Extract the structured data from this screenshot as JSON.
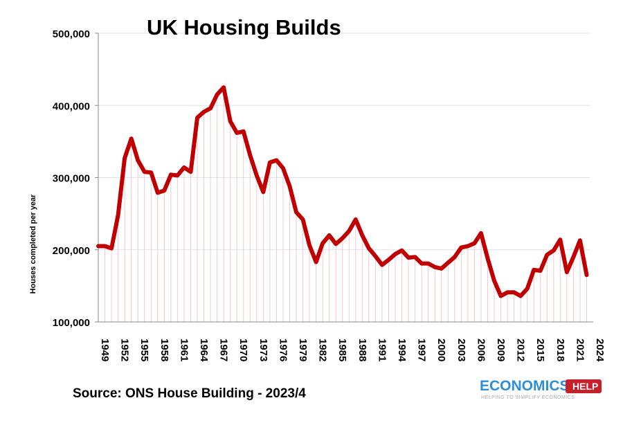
{
  "chart_data": {
    "type": "line",
    "title": "UK Housing Builds",
    "xlabel": "",
    "ylabel": "Houses completed per year",
    "ylim": [
      100000,
      500000
    ],
    "yticks": [
      "100,000",
      "200,000",
      "300,000",
      "400,000",
      "500,000"
    ],
    "ytick_values": [
      100000,
      200000,
      300000,
      400000,
      500000
    ],
    "xlim": [
      1949,
      2024
    ],
    "xticks": [
      "1949",
      "1952",
      "1955",
      "1958",
      "1961",
      "1964",
      "1967",
      "1970",
      "1973",
      "1976",
      "1979",
      "1982",
      "1985",
      "1988",
      "1991",
      "1994",
      "1997",
      "2000",
      "2003",
      "2006",
      "2009",
      "2012",
      "2015",
      "2018",
      "2021",
      "2024"
    ],
    "grid": true,
    "line_color": "#c00000",
    "x": [
      1949,
      1950,
      1951,
      1952,
      1953,
      1954,
      1955,
      1956,
      1957,
      1958,
      1959,
      1960,
      1961,
      1962,
      1963,
      1964,
      1965,
      1966,
      1967,
      1968,
      1969,
      1970,
      1971,
      1972,
      1973,
      1974,
      1975,
      1976,
      1977,
      1978,
      1979,
      1980,
      1981,
      1982,
      1983,
      1984,
      1985,
      1986,
      1987,
      1988,
      1989,
      1990,
      1991,
      1992,
      1993,
      1994,
      1995,
      1996,
      1997,
      1998,
      1999,
      2000,
      2001,
      2002,
      2003,
      2004,
      2005,
      2006,
      2007,
      2008,
      2009,
      2010,
      2011,
      2012,
      2013,
      2014,
      2015,
      2016,
      2017,
      2018,
      2019,
      2020,
      2021,
      2022,
      2023
    ],
    "values": [
      205000,
      205000,
      202000,
      248000,
      327000,
      354000,
      324000,
      308000,
      307000,
      279000,
      282000,
      304000,
      303000,
      314000,
      308000,
      383000,
      391000,
      396000,
      415000,
      425000,
      378000,
      362000,
      364000,
      331000,
      303000,
      280000,
      321000,
      324000,
      313000,
      288000,
      252000,
      242000,
      206000,
      183000,
      209000,
      220000,
      208000,
      216000,
      226000,
      242000,
      220000,
      202000,
      191000,
      179000,
      186000,
      194000,
      199000,
      189000,
      190000,
      181000,
      181000,
      176000,
      174000,
      182000,
      190000,
      203000,
      205000,
      209000,
      223000,
      188000,
      157000,
      136000,
      141000,
      141000,
      136000,
      146000,
      172000,
      171000,
      193000,
      199000,
      214000,
      169000,
      190000,
      213000,
      165000
    ]
  },
  "source": "Source: ONS House Building - 2023/4",
  "logo": {
    "word": "ECONOMICS",
    "tag": "HELP",
    "tagline": "HELPING TO SIMPLIFY ECONOMICS"
  }
}
